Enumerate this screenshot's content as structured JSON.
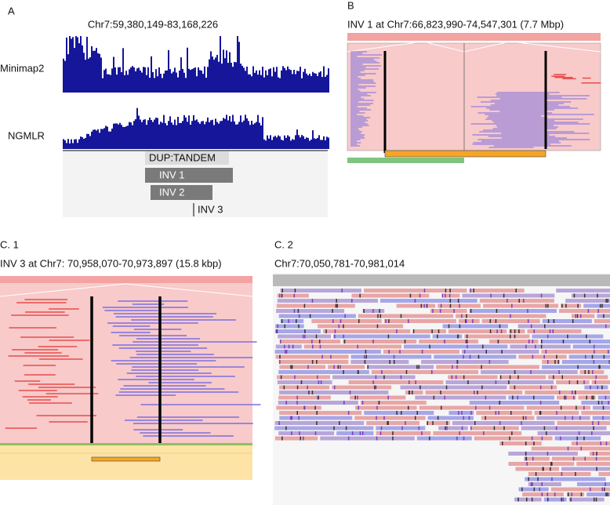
{
  "panels": [
    {
      "label": "A",
      "locus": "Chr7:59,380,149-83,168,226",
      "tracks": [
        "Minimap2",
        "NGMLR"
      ],
      "features": [
        "DUP:TANDEM",
        "INV 1",
        "INV 2",
        "INV 3"
      ]
    },
    {
      "label": "B",
      "title": "INV 1 at Chr7:66,823,990-74,547,301 (7.7 Mbp)"
    },
    {
      "label": "C. 1",
      "title": "INV 3 at Chr7: 70,958,070-70,973,897 (15.8 kbp)"
    },
    {
      "label": "C. 2",
      "locus": "Chr7:70,050,781-70,981,014"
    }
  ]
}
